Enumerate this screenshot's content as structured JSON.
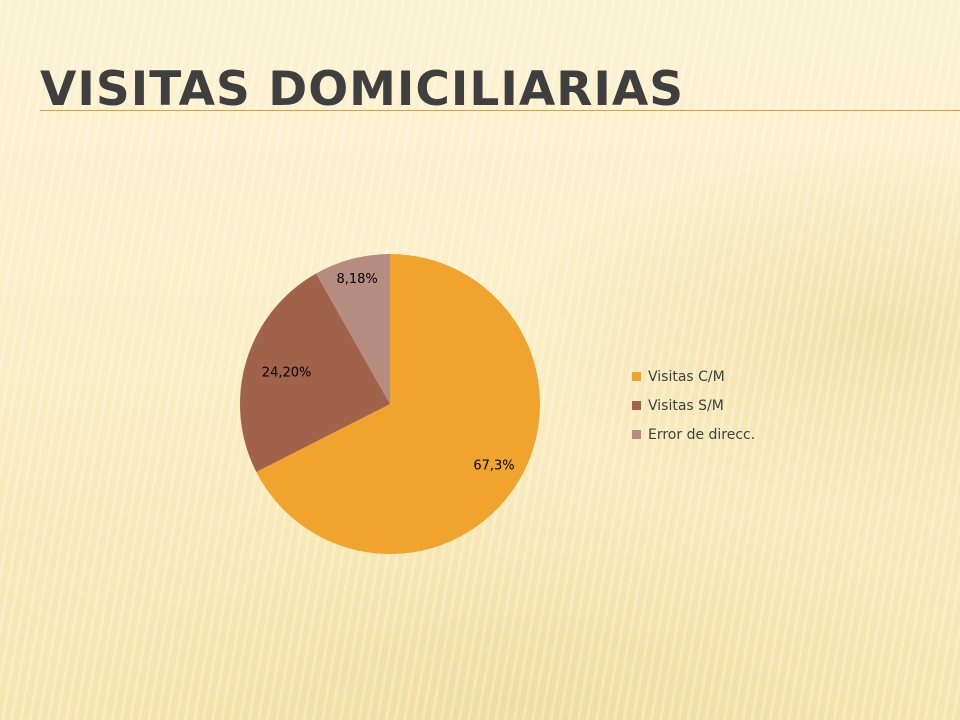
{
  "slide": {
    "title": "Visitas domiciliarias"
  },
  "colors": {
    "title_rule": "#d4a43a",
    "slices": [
      "#f0a42e",
      "#a0624a",
      "#b48c80"
    ]
  },
  "chart_data": {
    "type": "pie",
    "title": "",
    "categories": [
      "Visitas C/M",
      "Visitas S/M",
      "Error de direcc."
    ],
    "values": [
      67.3,
      24.2,
      8.18
    ],
    "data_labels": [
      "67,3%",
      "24,20%",
      "8,18%"
    ],
    "legend": {
      "placement": "right"
    }
  }
}
